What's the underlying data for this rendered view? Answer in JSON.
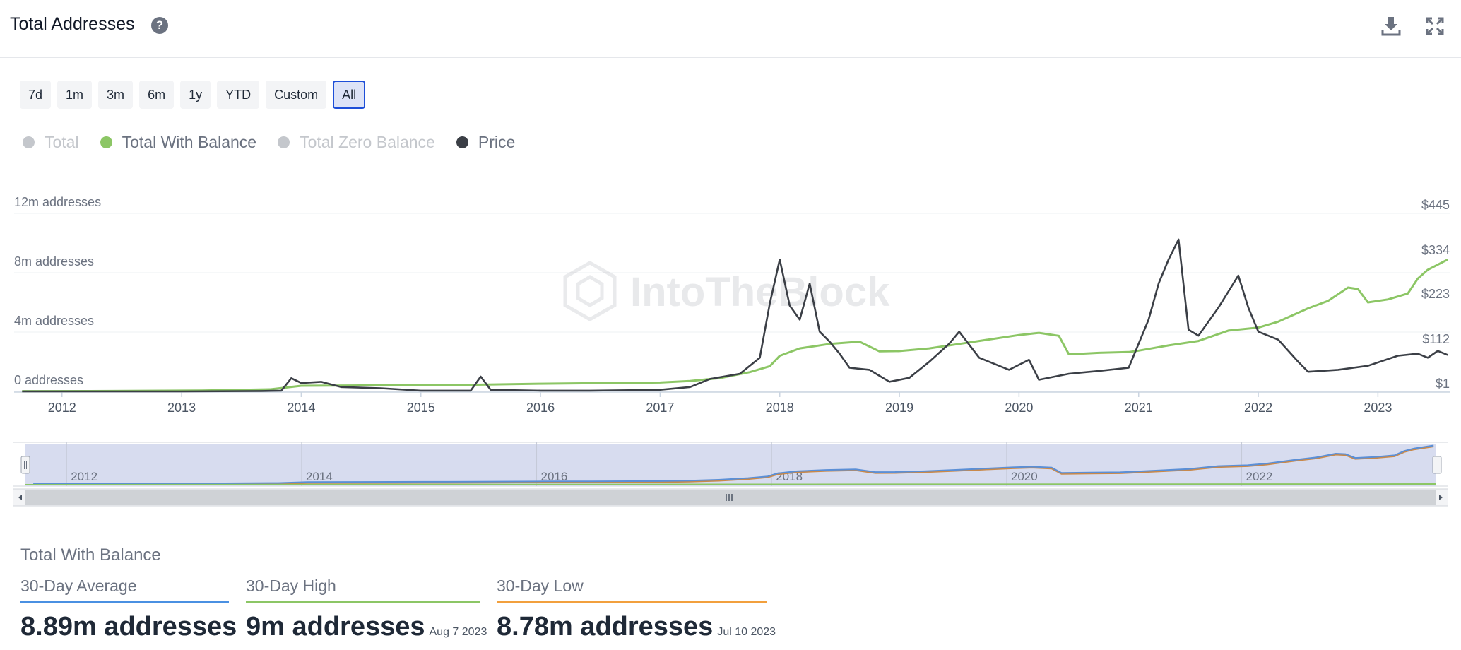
{
  "header": {
    "title": "Total Addresses",
    "help_icon": "question-circle-icon",
    "download_icon": "download-icon",
    "expand_icon": "expand-icon"
  },
  "ranges": [
    "7d",
    "1m",
    "3m",
    "6m",
    "1y",
    "YTD",
    "Custom",
    "All"
  ],
  "active_range": "All",
  "legend": [
    {
      "name": "Total",
      "color": "#c4c7cc",
      "active": false
    },
    {
      "name": "Total With Balance",
      "color": "#8cc665",
      "active": true
    },
    {
      "name": "Total Zero Balance",
      "color": "#c4c7cc",
      "active": false
    },
    {
      "name": "Price",
      "color": "#3b3f46",
      "active": true
    }
  ],
  "watermark": "IntoTheBlock",
  "chart_data": {
    "type": "line",
    "x_ticks": [
      "2012",
      "2013",
      "2014",
      "2015",
      "2016",
      "2017",
      "2018",
      "2019",
      "2020",
      "2021",
      "2022",
      "2023"
    ],
    "y_left_ticks": [
      "0 addresses",
      "4m addresses",
      "8m addresses",
      "12m addresses"
    ],
    "y_right_ticks": [
      "$1",
      "$112",
      "$223",
      "$334",
      "$445"
    ],
    "y_left_range": [
      0,
      12000000
    ],
    "y_right_range": [
      1,
      445
    ],
    "series": [
      {
        "name": "Total With Balance",
        "axis": "left",
        "color": "#8cc665",
        "points": [
          [
            "2011-09",
            0.02
          ],
          [
            "2012-06",
            0.03
          ],
          [
            "2013-03",
            0.06
          ],
          [
            "2013-10",
            0.15
          ],
          [
            "2014-01",
            0.38
          ],
          [
            "2014-06",
            0.4
          ],
          [
            "2015-01",
            0.42
          ],
          [
            "2015-06",
            0.45
          ],
          [
            "2016-01",
            0.52
          ],
          [
            "2016-06",
            0.55
          ],
          [
            "2017-01",
            0.6
          ],
          [
            "2017-04",
            0.7
          ],
          [
            "2017-07",
            0.9
          ],
          [
            "2017-10",
            1.3
          ],
          [
            "2017-12",
            1.7
          ],
          [
            "2018-01",
            2.4
          ],
          [
            "2018-03",
            2.9
          ],
          [
            "2018-06",
            3.2
          ],
          [
            "2018-09",
            3.35
          ],
          [
            "2018-11",
            2.7
          ],
          [
            "2019-01",
            2.72
          ],
          [
            "2019-04",
            2.9
          ],
          [
            "2019-07",
            3.2
          ],
          [
            "2019-10",
            3.5
          ],
          [
            "2020-01",
            3.8
          ],
          [
            "2020-03",
            3.95
          ],
          [
            "2020-05",
            3.75
          ],
          [
            "2020-06",
            2.5
          ],
          [
            "2020-09",
            2.6
          ],
          [
            "2020-12",
            2.65
          ],
          [
            "2021-01",
            2.75
          ],
          [
            "2021-04",
            3.1
          ],
          [
            "2021-07",
            3.4
          ],
          [
            "2021-10",
            4.1
          ],
          [
            "2022-01",
            4.3
          ],
          [
            "2022-03",
            4.7
          ],
          [
            "2022-06",
            5.6
          ],
          [
            "2022-08",
            6.1
          ],
          [
            "2022-10",
            7.0
          ],
          [
            "2022-11",
            6.9
          ],
          [
            "2022-12",
            6.0
          ],
          [
            "2023-02",
            6.2
          ],
          [
            "2023-04",
            6.6
          ],
          [
            "2023-05",
            7.6
          ],
          [
            "2023-06",
            8.2
          ],
          [
            "2023-08",
            8.89
          ]
        ]
      },
      {
        "name": "Price",
        "axis": "right",
        "color": "#3b3f46",
        "points": [
          [
            "2011-09",
            1
          ],
          [
            "2012-06",
            1
          ],
          [
            "2013-01",
            1
          ],
          [
            "2013-09",
            2
          ],
          [
            "2013-11",
            3
          ],
          [
            "2013-12",
            34
          ],
          [
            "2014-01",
            22
          ],
          [
            "2014-03",
            25
          ],
          [
            "2014-05",
            12
          ],
          [
            "2014-09",
            9
          ],
          [
            "2015-01",
            3
          ],
          [
            "2015-06",
            3
          ],
          [
            "2015-07",
            38
          ],
          [
            "2015-08",
            5
          ],
          [
            "2016-01",
            3
          ],
          [
            "2016-06",
            3
          ],
          [
            "2017-01",
            5
          ],
          [
            "2017-04",
            12
          ],
          [
            "2017-06",
            32
          ],
          [
            "2017-09",
            45
          ],
          [
            "2017-11",
            85
          ],
          [
            "2017-12",
            220
          ],
          [
            "2018-01",
            330
          ],
          [
            "2018-02",
            215
          ],
          [
            "2018-03",
            180
          ],
          [
            "2018-04",
            270
          ],
          [
            "2018-05",
            150
          ],
          [
            "2018-06",
            125
          ],
          [
            "2018-07",
            95
          ],
          [
            "2018-08",
            60
          ],
          [
            "2018-10",
            55
          ],
          [
            "2018-12",
            25
          ],
          [
            "2019-02",
            35
          ],
          [
            "2019-04",
            75
          ],
          [
            "2019-06",
            120
          ],
          [
            "2019-07",
            150
          ],
          [
            "2019-09",
            85
          ],
          [
            "2019-12",
            55
          ],
          [
            "2020-02",
            80
          ],
          [
            "2020-03",
            30
          ],
          [
            "2020-06",
            45
          ],
          [
            "2020-09",
            52
          ],
          [
            "2020-12",
            60
          ],
          [
            "2021-01",
            120
          ],
          [
            "2021-02",
            180
          ],
          [
            "2021-03",
            270
          ],
          [
            "2021-04",
            330
          ],
          [
            "2021-05",
            380
          ],
          [
            "2021-06",
            155
          ],
          [
            "2021-07",
            140
          ],
          [
            "2021-09",
            210
          ],
          [
            "2021-11",
            290
          ],
          [
            "2021-12",
            210
          ],
          [
            "2022-01",
            150
          ],
          [
            "2022-03",
            130
          ],
          [
            "2022-05",
            75
          ],
          [
            "2022-06",
            50
          ],
          [
            "2022-09",
            55
          ],
          [
            "2022-12",
            65
          ],
          [
            "2023-03",
            90
          ],
          [
            "2023-05",
            95
          ],
          [
            "2023-06",
            85
          ],
          [
            "2023-07",
            102
          ],
          [
            "2023-08",
            92
          ]
        ]
      }
    ],
    "navigator": {
      "x_ticks": [
        "2012",
        "2014",
        "2016",
        "2018",
        "2020",
        "2022"
      ],
      "selection": "All"
    }
  },
  "summary": {
    "title": "Total With Balance",
    "stats": [
      {
        "label": "30-Day Average",
        "value": "8.89m addresses",
        "date": "",
        "color": "#4a90e2"
      },
      {
        "label": "30-Day High",
        "value": "9m addresses",
        "date": "Aug 7 2023",
        "color": "#8cc665"
      },
      {
        "label": "30-Day Low",
        "value": "8.78m addresses",
        "date": "Jul 10 2023",
        "color": "#f2a03d"
      }
    ]
  }
}
